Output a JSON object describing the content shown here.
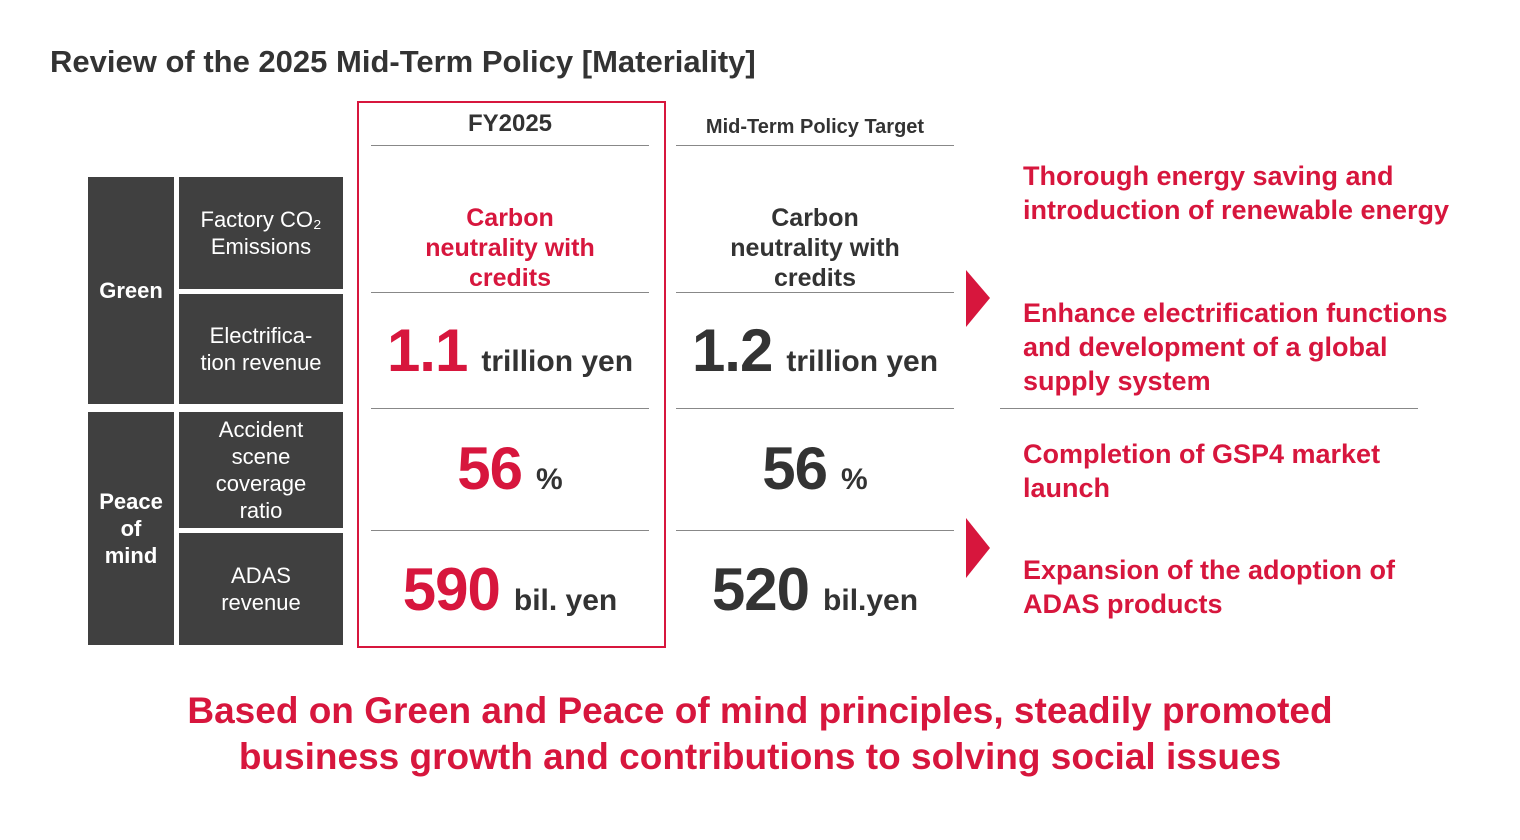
{
  "title": "Review of the 2025 Mid-Term Policy [Materiality]",
  "headers": {
    "fy2025": "FY2025",
    "target": "Mid-Term Policy Target"
  },
  "groups": [
    {
      "label": "Green",
      "rows": [
        {
          "label": "Factory CO₂ Emissions",
          "fy2025": {
            "text": "Carbon neutrality with credits"
          },
          "target": {
            "text": "Carbon neutrality with credits"
          }
        },
        {
          "label": "Electrifica-tion revenue",
          "fy2025": {
            "value": 1.1,
            "unit": "trillion yen"
          },
          "target": {
            "value": 1.2,
            "unit": "trillion yen"
          }
        }
      ]
    },
    {
      "label": "Peace of mind",
      "rows": [
        {
          "label": "Accident scene coverage ratio",
          "fy2025": {
            "value": 56,
            "unit": "%"
          },
          "target": {
            "value": 56,
            "unit": "%"
          }
        },
        {
          "label": "ADAS revenue",
          "fy2025": {
            "value": 590,
            "unit": "bil. yen"
          },
          "target": {
            "value": 520,
            "unit": "bil.yen"
          }
        }
      ]
    }
  ],
  "actions": [
    "Thorough energy saving and introduction of renewable energy",
    "Enhance electrification functions and development of a global supply system",
    "Completion of GSP4 market launch",
    "Expansion of the adoption of ADAS products"
  ],
  "conclusion": "Based on Green and Peace of mind principles, steadily promoted business growth and contributions to solving social issues"
}
